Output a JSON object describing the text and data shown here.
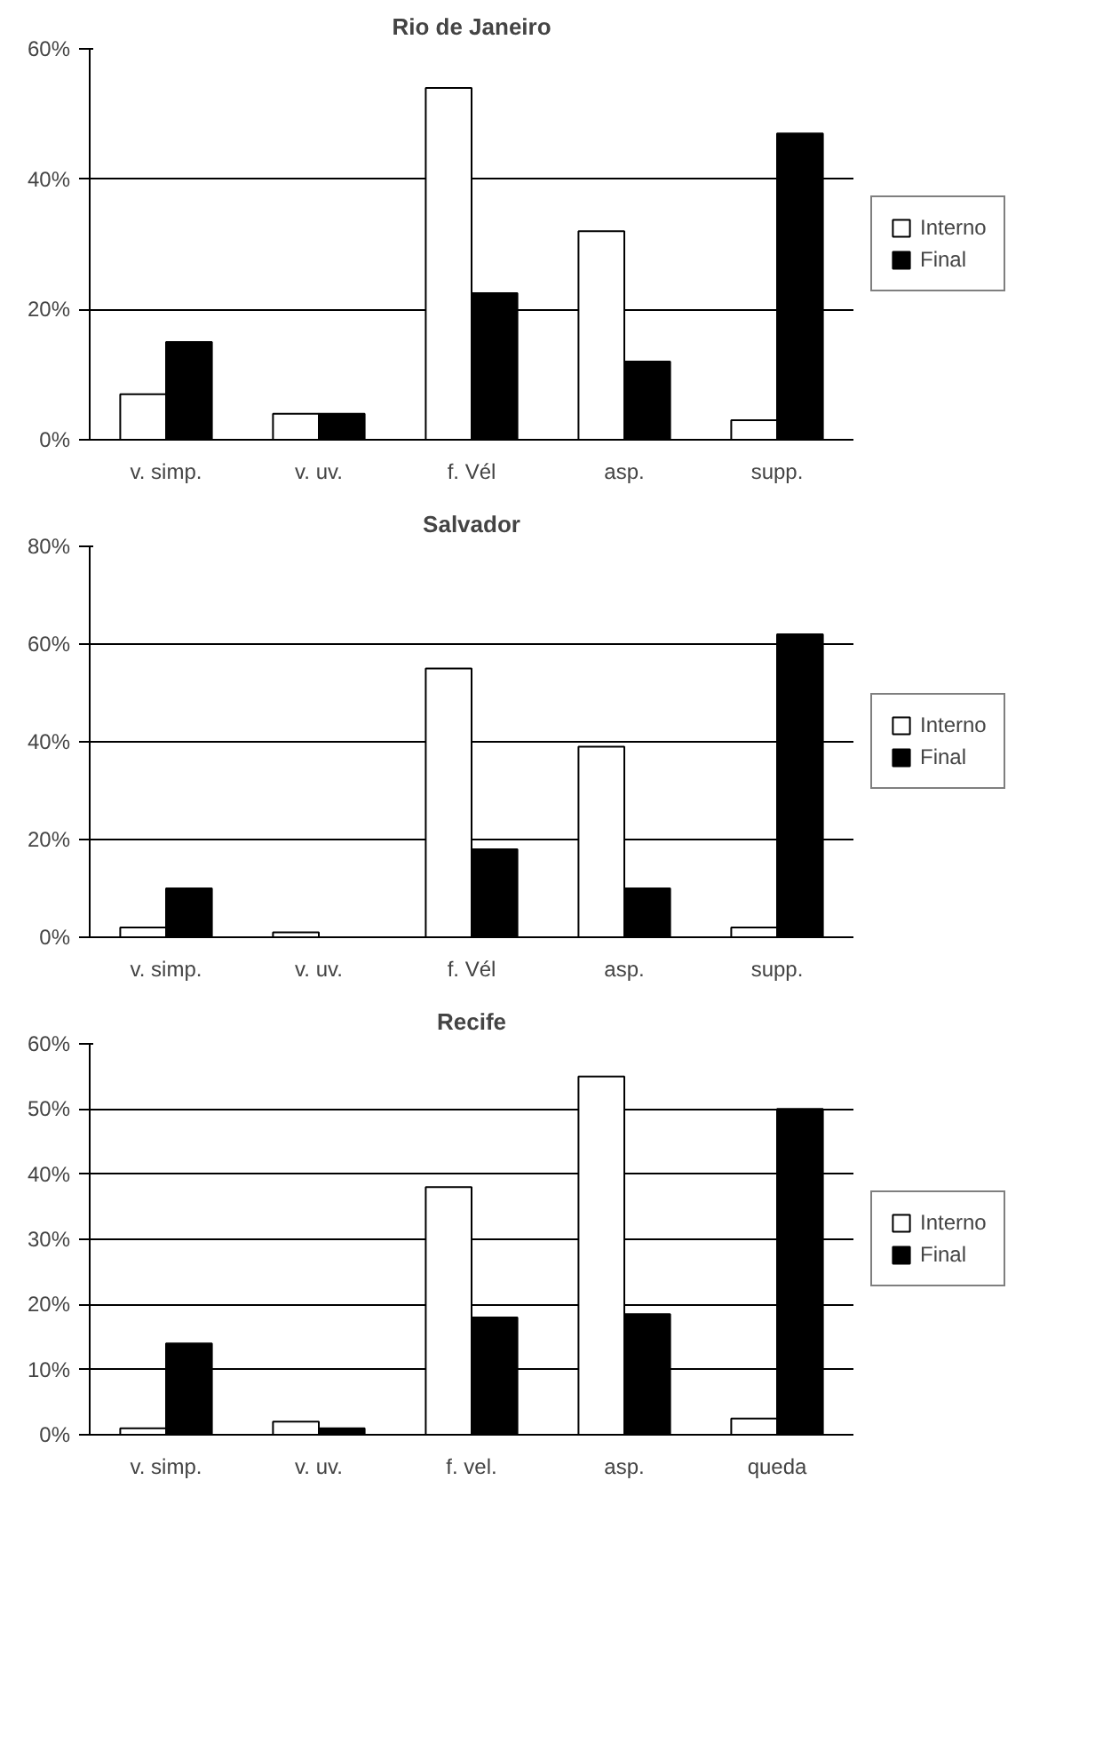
{
  "chart_data": [
    {
      "type": "bar",
      "title": "Rio de Janeiro",
      "categories": [
        "v. simp.",
        "v. uv.",
        "f. Vél",
        "asp.",
        "supp."
      ],
      "series": [
        {
          "name": "Interno",
          "color": "#ffffff",
          "values": [
            7,
            4,
            54,
            32,
            3
          ]
        },
        {
          "name": "Final",
          "color": "#000000",
          "values": [
            15,
            4,
            22.5,
            12,
            47
          ]
        }
      ],
      "ylim": [
        0,
        60
      ],
      "yticks": [
        {
          "value": 0,
          "label": "0%"
        },
        {
          "value": 20,
          "label": "20%"
        },
        {
          "value": 40,
          "label": "40%"
        },
        {
          "value": 60,
          "label": "60%"
        }
      ],
      "grid": "y",
      "legend": "right"
    },
    {
      "type": "bar",
      "title": "Salvador",
      "categories": [
        "v. simp.",
        "v. uv.",
        "f. Vél",
        "asp.",
        "supp."
      ],
      "series": [
        {
          "name": "Interno",
          "color": "#ffffff",
          "values": [
            2,
            1,
            55,
            39,
            2
          ]
        },
        {
          "name": "Final",
          "color": "#000000",
          "values": [
            10,
            0,
            18,
            10,
            62
          ]
        }
      ],
      "ylim": [
        0,
        80
      ],
      "yticks": [
        {
          "value": 0,
          "label": "0%"
        },
        {
          "value": 20,
          "label": "20%"
        },
        {
          "value": 40,
          "label": "40%"
        },
        {
          "value": 60,
          "label": "60%"
        },
        {
          "value": 80,
          "label": "80%"
        }
      ],
      "grid": "y",
      "legend": "right"
    },
    {
      "type": "bar",
      "title": "Recife",
      "categories": [
        "v. simp.",
        "v. uv.",
        "f. vel.",
        "asp.",
        "queda"
      ],
      "series": [
        {
          "name": "Interno",
          "color": "#ffffff",
          "values": [
            1,
            2,
            38,
            55,
            2.5
          ]
        },
        {
          "name": "Final",
          "color": "#000000",
          "values": [
            14,
            1,
            18,
            18.5,
            50
          ]
        }
      ],
      "ylim": [
        0,
        60
      ],
      "yticks": [
        {
          "value": 0,
          "label": "0%"
        },
        {
          "value": 10,
          "label": "10%"
        },
        {
          "value": 20,
          "label": "20%"
        },
        {
          "value": 30,
          "label": "30%"
        },
        {
          "value": 40,
          "label": "40%"
        },
        {
          "value": 50,
          "label": "50%"
        },
        {
          "value": 60,
          "label": "60%"
        }
      ],
      "grid": "y",
      "legend": "right"
    }
  ]
}
